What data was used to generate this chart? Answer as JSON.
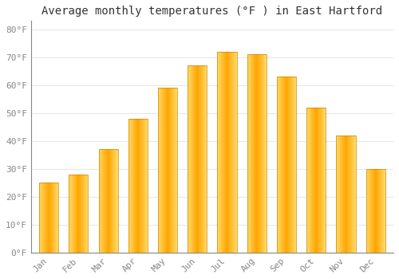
{
  "title": "Average monthly temperatures (°F ) in East Hartford",
  "months": [
    "Jan",
    "Feb",
    "Mar",
    "Apr",
    "May",
    "Jun",
    "Jul",
    "Aug",
    "Sep",
    "Oct",
    "Nov",
    "Dec"
  ],
  "values": [
    25,
    28,
    37,
    48,
    59,
    67,
    72,
    71,
    63,
    52,
    42,
    30
  ],
  "bar_color_center": "#FFA500",
  "bar_color_edge": "#FFD966",
  "bar_outline": "#CC8800",
  "ytick_labels": [
    "0°F",
    "10°F",
    "20°F",
    "30°F",
    "40°F",
    "50°F",
    "60°F",
    "70°F",
    "80°F"
  ],
  "ytick_values": [
    0,
    10,
    20,
    30,
    40,
    50,
    60,
    70,
    80
  ],
  "ylim": [
    0,
    83
  ],
  "grid_color": "#e8e8e8",
  "background_color": "#ffffff",
  "title_fontsize": 10,
  "tick_fontsize": 8,
  "tick_color": "#888888",
  "font_family": "monospace"
}
